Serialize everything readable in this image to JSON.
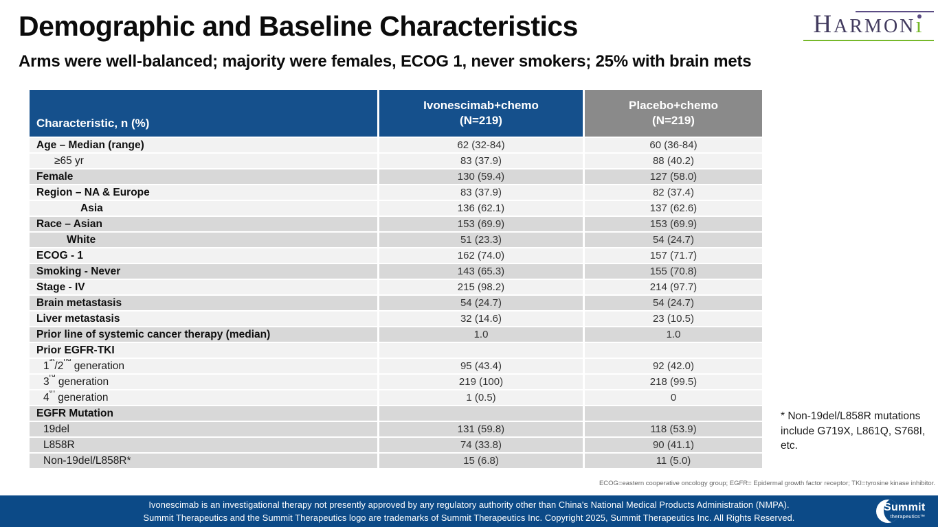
{
  "colors": {
    "header_blue": "#15508c",
    "header_gray": "#8a8a8a",
    "row_light": "#f2f2f2",
    "row_dark": "#d8d8d8",
    "footer_bar": "#0c4a87",
    "harmoni_purple": "#5b4c84",
    "harmoni_green": "#76b82a"
  },
  "header": {
    "title": "Demographic and Baseline Characteristics",
    "subtitle": "Arms were well-balanced; majority were females, ECOG 1, never smokers; 25% with brain mets"
  },
  "harmoni_logo": {
    "cap": "H",
    "mid": "ARMON",
    "i_stem": "ı"
  },
  "table": {
    "header": {
      "characteristic": "Characteristic, n (%)",
      "ivo_line1": "Ivonescimab+chemo",
      "ivo_line2": "(N=219)",
      "pbo_line1": "Placebo+chemo",
      "pbo_line2": "(N=219)"
    },
    "rows": [
      {
        "label": "Age – Median (range)",
        "ivo": "62 (32-84)",
        "pbo": "60 (36-84)",
        "band": "light",
        "bold": true,
        "indent": 0
      },
      {
        "label": "≥65 yr",
        "ivo": "83 (37.9)",
        "pbo": "88 (40.2)",
        "band": "light",
        "bold": false,
        "indent": 26
      },
      {
        "label": "Female",
        "ivo": "130 (59.4)",
        "pbo": "127 (58.0)",
        "band": "dark",
        "bold": true,
        "indent": 0
      },
      {
        "label": "Region – NA & Europe",
        "ivo": "83 (37.9)",
        "pbo": "82 (37.4)",
        "band": "light",
        "bold": true,
        "indent": 0
      },
      {
        "label": "Asia",
        "ivo": "136 (62.1)",
        "pbo": "137 (62.6)",
        "band": "light",
        "bold": true,
        "indent": 64
      },
      {
        "label": "Race – Asian",
        "ivo": "153 (69.9)",
        "pbo": "153 (69.9)",
        "band": "dark",
        "bold": true,
        "indent": 0
      },
      {
        "label": "White",
        "ivo": "51 (23.3)",
        "pbo": "54 (24.7)",
        "band": "dark",
        "bold": true,
        "indent": 44
      },
      {
        "label": "ECOG - 1",
        "ivo": "162 (74.0)",
        "pbo": "157 (71.7)",
        "band": "light",
        "bold": true,
        "indent": 0
      },
      {
        "label": "Smoking - Never",
        "ivo": "143 (65.3)",
        "pbo": "155 (70.8)",
        "band": "dark",
        "bold": true,
        "indent": 0
      },
      {
        "label": "Stage - IV",
        "ivo": "215 (98.2)",
        "pbo": "214 (97.7)",
        "band": "light",
        "bold": true,
        "indent": 0
      },
      {
        "label": "Brain metastasis",
        "ivo": "54 (24.7)",
        "pbo": "54 (24.7)",
        "band": "dark",
        "bold": true,
        "indent": 0
      },
      {
        "label": "Liver metastasis",
        "ivo": "32 (14.6)",
        "pbo": "23 (10.5)",
        "band": "light",
        "bold": true,
        "indent": 0
      },
      {
        "label": "Prior line of systemic cancer therapy (median)",
        "ivo": "1.0",
        "pbo": "1.0",
        "band": "dark",
        "bold": true,
        "indent": 0
      },
      {
        "label": "Prior EGFR-TKI",
        "ivo": "",
        "pbo": "",
        "band": "light",
        "bold": true,
        "indent": 0
      },
      {
        "label": "1st/2nd generation",
        "ivo": "95 (43.4)",
        "pbo": "92 (42.0)",
        "band": "light",
        "bold": false,
        "indent": 10,
        "sup": true
      },
      {
        "label": "3rd generation",
        "ivo": "219 (100)",
        "pbo": "218 (99.5)",
        "band": "light",
        "bold": false,
        "indent": 10,
        "sup": true
      },
      {
        "label": "4th generation",
        "ivo": "1 (0.5)",
        "pbo": "0",
        "band": "light",
        "bold": false,
        "indent": 10,
        "sup": true
      },
      {
        "label": "EGFR Mutation",
        "ivo": "",
        "pbo": "",
        "band": "dark",
        "bold": true,
        "indent": 0
      },
      {
        "label": "19del",
        "ivo": "131 (59.8)",
        "pbo": "118 (53.9)",
        "band": "dark",
        "bold": false,
        "indent": 10
      },
      {
        "label": "L858R",
        "ivo": "74 (33.8)",
        "pbo": "90 (41.1)",
        "band": "dark",
        "bold": false,
        "indent": 10
      },
      {
        "label": "Non-19del/L858R*",
        "ivo": "15 (6.8)",
        "pbo": "11 (5.0)",
        "band": "dark",
        "bold": false,
        "indent": 10
      }
    ]
  },
  "side_note": "* Non-19del/L858R mutations include G719X, L861Q, S768I, etc.",
  "abbrev_note": "ECOG=eastern cooperative oncology group; EGFR= Epidermal growth factor receptor; TKI=tyrosine kinase inhibitor.",
  "footer": {
    "line1": "Ivonescimab is an investigational therapy not presently approved by any regulatory authority other than China's National Medical Products Administration (NMPA).",
    "line2": "Summit Therapeutics and the Summit Therapeutics logo are trademarks of Summit Therapeutics Inc. Copyright 2025, Summit Therapeutics Inc. All Rights Reserved.",
    "logo_name": "Summit",
    "logo_sub": "therapeutics™"
  }
}
